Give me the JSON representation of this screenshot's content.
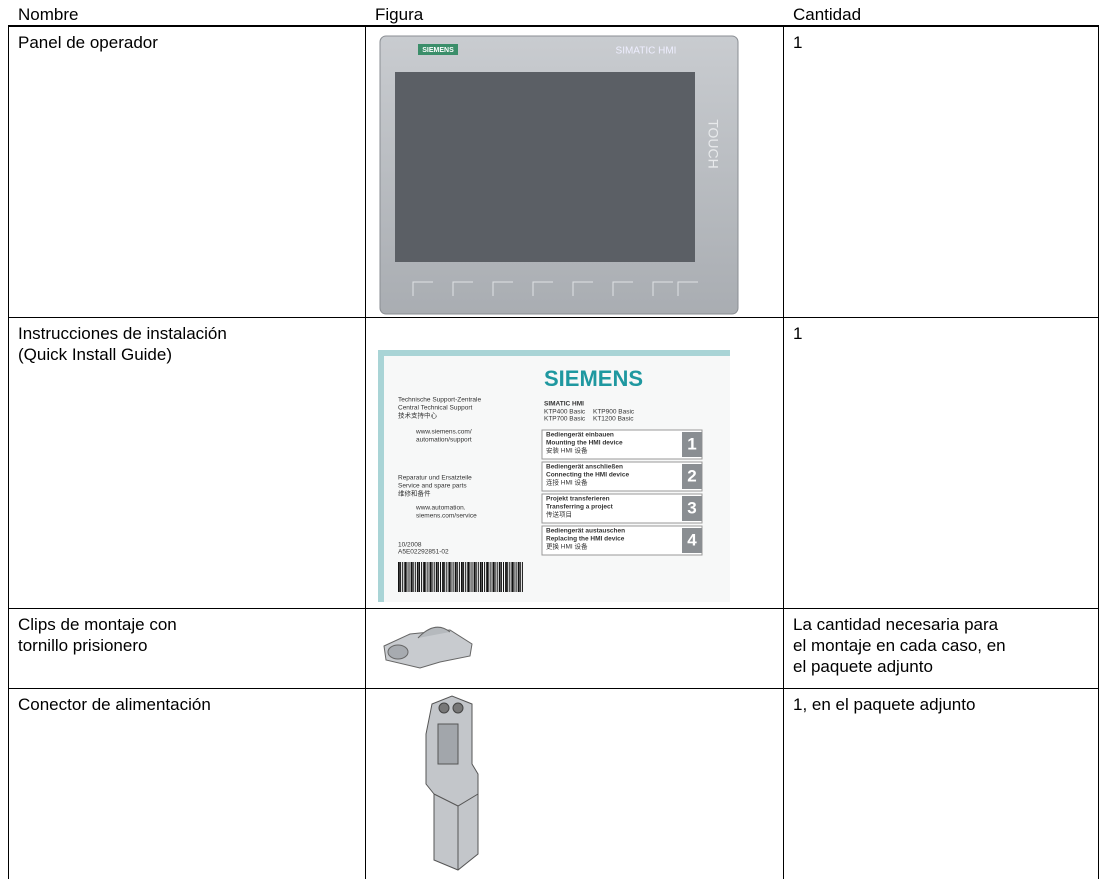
{
  "table": {
    "header": [
      "Nombre",
      "Figura",
      "Cantidad"
    ],
    "rows": [
      [
        [
          "Panel de operador"
        ],
        null,
        [
          "1"
        ]
      ],
      [
        [
          "Instrucciones de instalación",
          "(Quick Install Guide)"
        ],
        null,
        [
          "1"
        ]
      ],
      [
        [
          "Clips de montaje con",
          "tornillo prisionero"
        ],
        null,
        [
          "La cantidad necesaria para",
          "el montaje en cada caso, en",
          "el paquete adjunto"
        ]
      ],
      [
        [
          "Conector de alimentación"
        ],
        null,
        [
          "1, en el paquete adjunto"
        ]
      ]
    ]
  },
  "figures": {
    "panel": {
      "brand": "SIEMENS",
      "model": "SIMATIC HMI",
      "touch": "TOUCH"
    },
    "guide": {
      "left": [
        "Technische Support-Zentrale",
        "Central Technical Support",
        "技术支持中心",
        "www.siemens.com/",
        "automation/support",
        "Reparatur und Ersatzteile",
        "Service and spare parts",
        "维修和备件",
        "www.automation.",
        "siemens.com/service",
        "10/2008",
        "A5E02292851-02"
      ],
      "brand": "SIEMENS",
      "product": "SIMATIC HMI",
      "models": [
        "KTP400 Basic",
        "KTP900 Basic",
        "KTP700 Basic",
        "KT1200 Basic"
      ],
      "steps": [
        {
          "lines": [
            "Bediengerät einbauen",
            "Mounting the HMI device",
            "安装 HMI 设备"
          ],
          "number": 1
        },
        {
          "lines": [
            "Bediengerät anschließen",
            "Connecting the HMI device",
            "连接 HMI 设备"
          ],
          "number": 2
        },
        {
          "lines": [
            "Projekt transferieren",
            "Transferring a project",
            "传送项目"
          ],
          "number": 3
        },
        {
          "lines": [
            "Bediengerät austauschen",
            "Replacing the HMI device",
            "更换 HMI 设备"
          ],
          "number": 4
        }
      ]
    }
  }
}
